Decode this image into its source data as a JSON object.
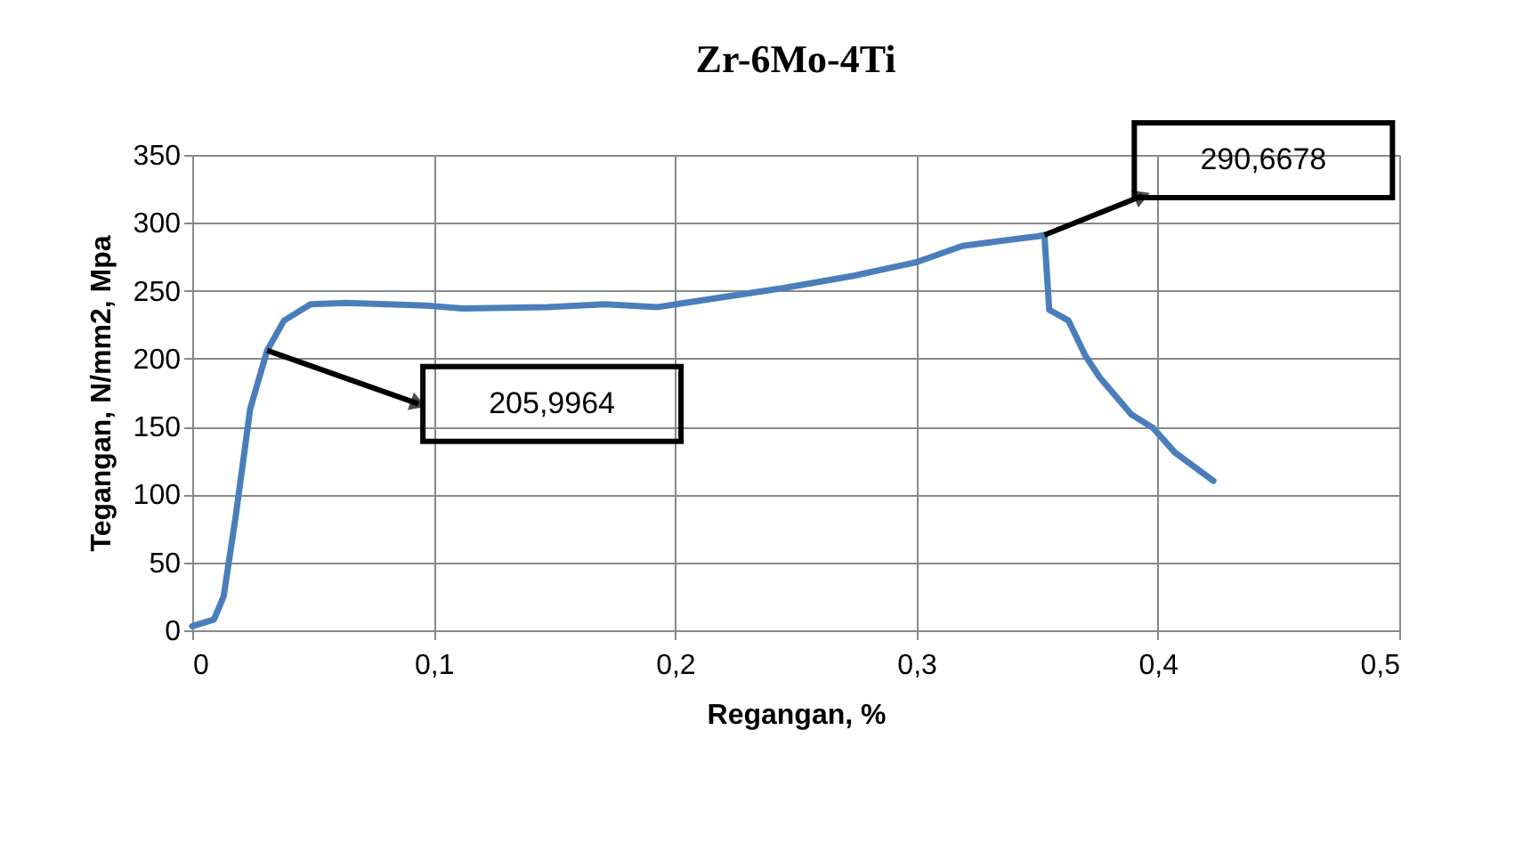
{
  "chart_data": {
    "type": "line",
    "title": "Zr-6Mo-4Ti",
    "xlabel": "Regangan, %",
    "ylabel": "Tegangan, N/mm2, Mpa",
    "x": [
      0,
      0.009,
      0.013,
      0.018,
      0.024,
      0.031,
      0.038,
      0.049,
      0.064,
      0.097,
      0.112,
      0.147,
      0.171,
      0.193,
      0.215,
      0.245,
      0.274,
      0.3,
      0.319,
      0.341,
      0.35,
      0.353,
      0.355,
      0.363,
      0.37,
      0.376,
      0.389,
      0.398,
      0.407,
      0.423
    ],
    "annotations": [
      "205,9964",
      "290,6678"
    ],
    "series": [
      {
        "color": "#4a7ebb",
        "values": [
          3,
          8,
          25,
          84,
          163,
          206,
          228,
          240,
          241,
          239,
          237,
          238,
          240,
          238,
          244,
          252,
          261,
          271,
          283,
          288,
          290,
          291,
          236,
          228,
          202,
          186,
          159,
          149,
          131,
          110
        ]
      }
    ],
    "xlim": [
      0,
      0.5
    ],
    "xticks": [
      {
        "value": 0,
        "label": "0"
      },
      {
        "value": 0.1,
        "label": "0,1"
      },
      {
        "value": 0.2,
        "label": "0,2"
      },
      {
        "value": 0.3,
        "label": "0,3"
      },
      {
        "value": 0.4,
        "label": "0,4"
      },
      {
        "value": 0.5,
        "label": "0,5"
      }
    ],
    "ylim": [
      0,
      350
    ],
    "yticks": [
      0,
      50,
      100,
      150,
      200,
      250,
      300,
      350
    ],
    "grid": true,
    "legend": false,
    "marker": "none",
    "line_style": "solid"
  }
}
